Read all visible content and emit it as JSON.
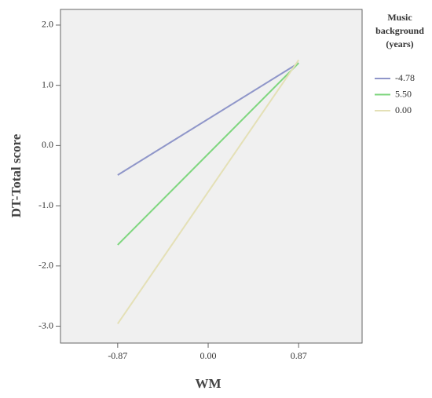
{
  "chart_data": {
    "type": "line",
    "x_label": "WM",
    "y_label": "DT-Total score",
    "legend_title": "Music background (years)",
    "x": [
      -0.87,
      0.87
    ],
    "series": [
      {
        "name": "-4.78",
        "color": "#8f96c9",
        "values": [
          -0.49,
          1.37
        ]
      },
      {
        "name": "5.50",
        "color": "#7ed67e",
        "values": [
          -1.65,
          1.37
        ]
      },
      {
        "name": "0.00",
        "color": "#e4e0b6",
        "values": [
          -2.96,
          1.42
        ]
      }
    ],
    "xlim": [
      -1.42,
      1.48
    ],
    "xticks": [
      -0.87,
      {
        "value": 0,
        "label": "0.00"
      },
      0.87
    ],
    "ylim": [
      -3.28,
      2.26
    ],
    "yticks": [
      {
        "value": 2,
        "label": "2.0"
      },
      {
        "value": 1,
        "label": "1.0"
      },
      {
        "value": 0,
        "label": "0.0"
      },
      {
        "value": -1,
        "label": "-1.0"
      },
      {
        "value": -2,
        "label": "-2.0"
      },
      {
        "value": -3,
        "label": "-3.0"
      }
    ],
    "legend": "right"
  }
}
